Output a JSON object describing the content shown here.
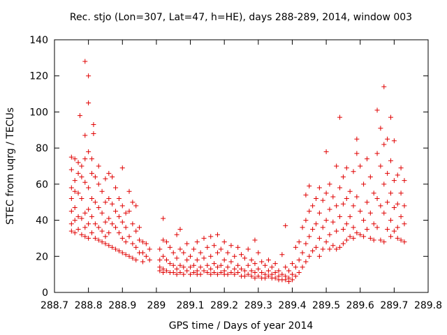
{
  "chart_data": {
    "type": "scatter",
    "title": "Rec. stjo (Lon=307, Lat=47, h=HE), days 288-289, 2014, window 003",
    "xlabel": "GPS time / Days of year 2014",
    "ylabel": "STEC from uqrg / TECUs",
    "xlim": [
      288.7,
      289.8
    ],
    "ylim": [
      0,
      140
    ],
    "x_ticks": [
      "288.7",
      "288.8",
      "288.9",
      "289",
      "289.1",
      "289.2",
      "289.3",
      "289.4",
      "289.5",
      "289.6",
      "289.7",
      "289.8"
    ],
    "y_ticks": [
      "0",
      "20",
      "40",
      "60",
      "80",
      "100",
      "120",
      "140"
    ],
    "grid": false,
    "legend": "none",
    "marker": "plus",
    "color": "#e00000",
    "points": [
      [
        288.75,
        75
      ],
      [
        288.75,
        68
      ],
      [
        288.75,
        58
      ],
      [
        288.75,
        52
      ],
      [
        288.75,
        45
      ],
      [
        288.75,
        38
      ],
      [
        288.75,
        34
      ],
      [
        288.76,
        74
      ],
      [
        288.76,
        62
      ],
      [
        288.76,
        56
      ],
      [
        288.76,
        47
      ],
      [
        288.76,
        40
      ],
      [
        288.76,
        33
      ],
      [
        288.77,
        72
      ],
      [
        288.77,
        66
      ],
      [
        288.77,
        55
      ],
      [
        288.77,
        42
      ],
      [
        288.77,
        35
      ],
      [
        288.775,
        98
      ],
      [
        288.78,
        70
      ],
      [
        288.78,
        64
      ],
      [
        288.78,
        52
      ],
      [
        288.78,
        41
      ],
      [
        288.78,
        32
      ],
      [
        288.79,
        128
      ],
      [
        288.79,
        87
      ],
      [
        288.79,
        74
      ],
      [
        288.79,
        61
      ],
      [
        288.79,
        44
      ],
      [
        288.79,
        36
      ],
      [
        288.79,
        31
      ],
      [
        288.8,
        120
      ],
      [
        288.8,
        105
      ],
      [
        288.8,
        78
      ],
      [
        288.8,
        58
      ],
      [
        288.8,
        46
      ],
      [
        288.8,
        38
      ],
      [
        288.8,
        30
      ],
      [
        288.81,
        74
      ],
      [
        288.81,
        66
      ],
      [
        288.81,
        52
      ],
      [
        288.81,
        42
      ],
      [
        288.81,
        33
      ],
      [
        288.815,
        93
      ],
      [
        288.815,
        88
      ],
      [
        288.82,
        64
      ],
      [
        288.82,
        50
      ],
      [
        288.82,
        38
      ],
      [
        288.82,
        30
      ],
      [
        288.83,
        70
      ],
      [
        288.83,
        60
      ],
      [
        288.83,
        47
      ],
      [
        288.83,
        36
      ],
      [
        288.83,
        29
      ],
      [
        288.84,
        56
      ],
      [
        288.84,
        44
      ],
      [
        288.84,
        34
      ],
      [
        288.84,
        28
      ],
      [
        288.85,
        63
      ],
      [
        288.85,
        50
      ],
      [
        288.85,
        39
      ],
      [
        288.85,
        31
      ],
      [
        288.85,
        27
      ],
      [
        288.86,
        66
      ],
      [
        288.86,
        52
      ],
      [
        288.86,
        41
      ],
      [
        288.86,
        33
      ],
      [
        288.86,
        26
      ],
      [
        288.87,
        64
      ],
      [
        288.87,
        49
      ],
      [
        288.87,
        38
      ],
      [
        288.87,
        25
      ],
      [
        288.88,
        58
      ],
      [
        288.88,
        45
      ],
      [
        288.88,
        36
      ],
      [
        288.88,
        24
      ],
      [
        288.89,
        52
      ],
      [
        288.89,
        42
      ],
      [
        288.89,
        33
      ],
      [
        288.89,
        23
      ],
      [
        288.9,
        69
      ],
      [
        288.9,
        48
      ],
      [
        288.9,
        39
      ],
      [
        288.9,
        30
      ],
      [
        288.9,
        22
      ],
      [
        288.91,
        44
      ],
      [
        288.91,
        36
      ],
      [
        288.91,
        28
      ],
      [
        288.91,
        21
      ],
      [
        288.92,
        56
      ],
      [
        288.92,
        45
      ],
      [
        288.92,
        31
      ],
      [
        288.92,
        20
      ],
      [
        288.93,
        50
      ],
      [
        288.93,
        38
      ],
      [
        288.93,
        27
      ],
      [
        288.93,
        19
      ],
      [
        288.94,
        48
      ],
      [
        288.94,
        34
      ],
      [
        288.94,
        25
      ],
      [
        288.94,
        18
      ],
      [
        288.95,
        36
      ],
      [
        288.95,
        29
      ],
      [
        288.95,
        22
      ],
      [
        288.96,
        28
      ],
      [
        288.96,
        22
      ],
      [
        288.96,
        17
      ],
      [
        288.97,
        27
      ],
      [
        288.97,
        20
      ],
      [
        288.98,
        24
      ],
      [
        288.98,
        18
      ],
      [
        289.01,
        24
      ],
      [
        289.01,
        18
      ],
      [
        289.01,
        14
      ],
      [
        289.01,
        12
      ],
      [
        289.02,
        41
      ],
      [
        289.02,
        29
      ],
      [
        289.02,
        20
      ],
      [
        289.02,
        13
      ],
      [
        289.02,
        11
      ],
      [
        289.03,
        28
      ],
      [
        289.03,
        18
      ],
      [
        289.03,
        12
      ],
      [
        289.04,
        25
      ],
      [
        289.04,
        16
      ],
      [
        289.04,
        11
      ],
      [
        289.05,
        22
      ],
      [
        289.05,
        15
      ],
      [
        289.05,
        11
      ],
      [
        289.06,
        32
      ],
      [
        289.06,
        19
      ],
      [
        289.06,
        13
      ],
      [
        289.06,
        10
      ],
      [
        289.07,
        35
      ],
      [
        289.07,
        24
      ],
      [
        289.07,
        15
      ],
      [
        289.07,
        11
      ],
      [
        289.08,
        22
      ],
      [
        289.08,
        14
      ],
      [
        289.08,
        10
      ],
      [
        289.09,
        27
      ],
      [
        289.09,
        18
      ],
      [
        289.09,
        12
      ],
      [
        289.1,
        20
      ],
      [
        289.1,
        14
      ],
      [
        289.1,
        10
      ],
      [
        289.11,
        24
      ],
      [
        289.11,
        15
      ],
      [
        289.11,
        11
      ],
      [
        289.12,
        28
      ],
      [
        289.12,
        18
      ],
      [
        289.12,
        12
      ],
      [
        289.12,
        10
      ],
      [
        289.13,
        22
      ],
      [
        289.13,
        14
      ],
      [
        289.13,
        10
      ],
      [
        289.14,
        30
      ],
      [
        289.14,
        19
      ],
      [
        289.14,
        12
      ],
      [
        289.15,
        25
      ],
      [
        289.15,
        15
      ],
      [
        289.15,
        11
      ],
      [
        289.16,
        31
      ],
      [
        289.16,
        20
      ],
      [
        289.16,
        13
      ],
      [
        289.16,
        10
      ],
      [
        289.17,
        26
      ],
      [
        289.17,
        16
      ],
      [
        289.17,
        11
      ],
      [
        289.18,
        32
      ],
      [
        289.18,
        22
      ],
      [
        289.18,
        14
      ],
      [
        289.18,
        10
      ],
      [
        289.19,
        24
      ],
      [
        289.19,
        15
      ],
      [
        289.19,
        11
      ],
      [
        289.2,
        28
      ],
      [
        289.2,
        18
      ],
      [
        289.2,
        12
      ],
      [
        289.2,
        10
      ],
      [
        289.21,
        22
      ],
      [
        289.21,
        14
      ],
      [
        289.21,
        10
      ],
      [
        289.22,
        26
      ],
      [
        289.22,
        17
      ],
      [
        289.22,
        11
      ],
      [
        289.23,
        20
      ],
      [
        289.23,
        13
      ],
      [
        289.23,
        10
      ],
      [
        289.24,
        25
      ],
      [
        289.24,
        15
      ],
      [
        289.24,
        11
      ],
      [
        289.25,
        21
      ],
      [
        289.25,
        13
      ],
      [
        289.25,
        9
      ],
      [
        289.26,
        19
      ],
      [
        289.26,
        12
      ],
      [
        289.26,
        9
      ],
      [
        289.27,
        24
      ],
      [
        289.27,
        15
      ],
      [
        289.27,
        10
      ],
      [
        289.28,
        18
      ],
      [
        289.28,
        12
      ],
      [
        289.28,
        9
      ],
      [
        289.29,
        29
      ],
      [
        289.29,
        16
      ],
      [
        289.29,
        11
      ],
      [
        289.29,
        8
      ],
      [
        289.3,
        22
      ],
      [
        289.3,
        13
      ],
      [
        289.3,
        9
      ],
      [
        289.31,
        17
      ],
      [
        289.31,
        11
      ],
      [
        289.31,
        8
      ],
      [
        289.32,
        15
      ],
      [
        289.32,
        10
      ],
      [
        289.32,
        8
      ],
      [
        289.33,
        18
      ],
      [
        289.33,
        12
      ],
      [
        289.33,
        9
      ],
      [
        289.34,
        14
      ],
      [
        289.34,
        10
      ],
      [
        289.34,
        8
      ],
      [
        289.35,
        16
      ],
      [
        289.35,
        11
      ],
      [
        289.35,
        8
      ],
      [
        289.36,
        12
      ],
      [
        289.36,
        9
      ],
      [
        289.36,
        7
      ],
      [
        289.37,
        21
      ],
      [
        289.37,
        10
      ],
      [
        289.37,
        7
      ],
      [
        289.38,
        37
      ],
      [
        289.38,
        14
      ],
      [
        289.38,
        9
      ],
      [
        289.38,
        7
      ],
      [
        289.39,
        12
      ],
      [
        289.39,
        8
      ],
      [
        289.39,
        6
      ],
      [
        289.4,
        16
      ],
      [
        289.4,
        10
      ],
      [
        289.4,
        7
      ],
      [
        289.41,
        25
      ],
      [
        289.41,
        14
      ],
      [
        289.41,
        9
      ],
      [
        289.42,
        28
      ],
      [
        289.42,
        18
      ],
      [
        289.42,
        11
      ],
      [
        289.43,
        36
      ],
      [
        289.43,
        22
      ],
      [
        289.43,
        14
      ],
      [
        289.44,
        54
      ],
      [
        289.44,
        40
      ],
      [
        289.44,
        27
      ],
      [
        289.44,
        17
      ],
      [
        289.45,
        59
      ],
      [
        289.45,
        45
      ],
      [
        289.45,
        31
      ],
      [
        289.45,
        20
      ],
      [
        289.46,
        48
      ],
      [
        289.46,
        35
      ],
      [
        289.46,
        23
      ],
      [
        289.47,
        52
      ],
      [
        289.47,
        38
      ],
      [
        289.47,
        25
      ],
      [
        289.48,
        58
      ],
      [
        289.48,
        44
      ],
      [
        289.48,
        30
      ],
      [
        289.48,
        20
      ],
      [
        289.49,
        51
      ],
      [
        289.49,
        36
      ],
      [
        289.49,
        24
      ],
      [
        289.5,
        78
      ],
      [
        289.5,
        55
      ],
      [
        289.5,
        40
      ],
      [
        289.5,
        28
      ],
      [
        289.51,
        60
      ],
      [
        289.51,
        46
      ],
      [
        289.51,
        32
      ],
      [
        289.51,
        24
      ],
      [
        289.52,
        53
      ],
      [
        289.52,
        39
      ],
      [
        289.52,
        26
      ],
      [
        289.53,
        70
      ],
      [
        289.53,
        48
      ],
      [
        289.53,
        34
      ],
      [
        289.53,
        24
      ],
      [
        289.54,
        97
      ],
      [
        289.54,
        58
      ],
      [
        289.54,
        42
      ],
      [
        289.54,
        25
      ],
      [
        289.55,
        64
      ],
      [
        289.55,
        49
      ],
      [
        289.55,
        35
      ],
      [
        289.55,
        27
      ],
      [
        289.56,
        69
      ],
      [
        289.56,
        52
      ],
      [
        289.56,
        38
      ],
      [
        289.56,
        29
      ],
      [
        289.57,
        56
      ],
      [
        289.57,
        42
      ],
      [
        289.57,
        31
      ],
      [
        289.58,
        67
      ],
      [
        289.58,
        48
      ],
      [
        289.58,
        36
      ],
      [
        289.58,
        30
      ],
      [
        289.59,
        85
      ],
      [
        289.59,
        77
      ],
      [
        289.59,
        53
      ],
      [
        289.59,
        33
      ],
      [
        289.6,
        70
      ],
      [
        289.6,
        45
      ],
      [
        289.6,
        32
      ],
      [
        289.61,
        60
      ],
      [
        289.61,
        40
      ],
      [
        289.61,
        31
      ],
      [
        289.62,
        74
      ],
      [
        289.62,
        50
      ],
      [
        289.62,
        35
      ],
      [
        289.63,
        64
      ],
      [
        289.63,
        44
      ],
      [
        289.63,
        30
      ],
      [
        289.64,
        55
      ],
      [
        289.64,
        38
      ],
      [
        289.64,
        29
      ],
      [
        289.65,
        101
      ],
      [
        289.65,
        77
      ],
      [
        289.65,
        52
      ],
      [
        289.65,
        36
      ],
      [
        289.66,
        91
      ],
      [
        289.66,
        70
      ],
      [
        289.66,
        48
      ],
      [
        289.66,
        29
      ],
      [
        289.67,
        114
      ],
      [
        289.67,
        82
      ],
      [
        289.67,
        60
      ],
      [
        289.67,
        44
      ],
      [
        289.67,
        28
      ],
      [
        289.68,
        85
      ],
      [
        289.68,
        66
      ],
      [
        289.68,
        50
      ],
      [
        289.68,
        35
      ],
      [
        289.69,
        97
      ],
      [
        289.69,
        73
      ],
      [
        289.69,
        55
      ],
      [
        289.69,
        40
      ],
      [
        289.69,
        31
      ],
      [
        289.7,
        84
      ],
      [
        289.7,
        62
      ],
      [
        289.7,
        47
      ],
      [
        289.7,
        34
      ],
      [
        289.71,
        65
      ],
      [
        289.71,
        49
      ],
      [
        289.71,
        36
      ],
      [
        289.71,
        30
      ],
      [
        289.72,
        69
      ],
      [
        289.72,
        55
      ],
      [
        289.72,
        42
      ],
      [
        289.72,
        29
      ],
      [
        289.73,
        62
      ],
      [
        289.73,
        48
      ],
      [
        289.73,
        38
      ],
      [
        289.73,
        28
      ]
    ]
  }
}
